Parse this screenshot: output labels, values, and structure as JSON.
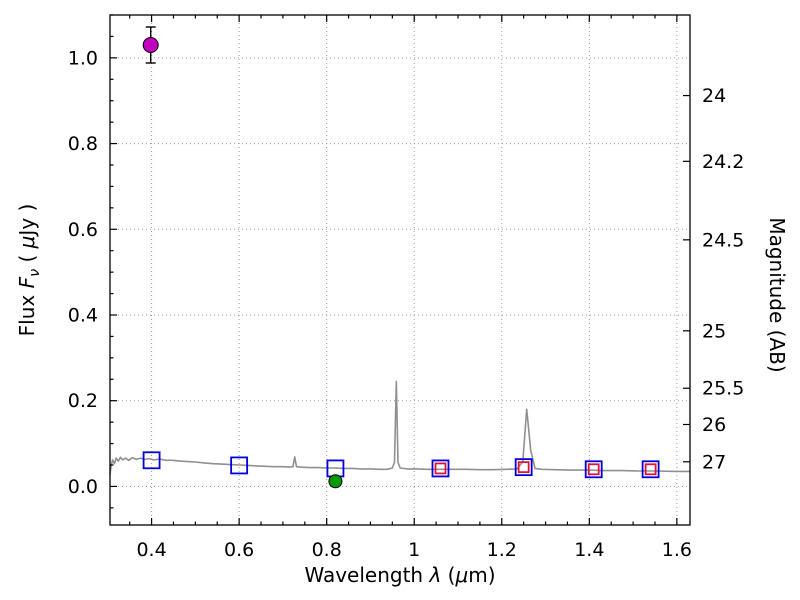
{
  "figure": {
    "background": "#ffffff"
  },
  "chart_data": {
    "type": "line",
    "title": "",
    "xlabel_text": "Wavelength λ (μm)",
    "ylabel_left_text": "Flux Fν ( μJy )",
    "ylabel_right_text": "Magnitude (AB)",
    "xlabel_parts": [
      {
        "text": "Wavelength  ",
        "style": "normal"
      },
      {
        "text": "λ",
        "style": "italic"
      },
      {
        "text": " (",
        "style": "normal"
      },
      {
        "text": "μ",
        "style": "italic"
      },
      {
        "text": "m)",
        "style": "normal"
      }
    ],
    "ylabel_left_parts": [
      {
        "text": "Flux  ",
        "style": "normal"
      },
      {
        "text": "F",
        "style": "italic"
      },
      {
        "text": "ν",
        "style": "italic-sub"
      },
      {
        "text": "  ( ",
        "style": "normal"
      },
      {
        "text": "μ",
        "style": "italic"
      },
      {
        "text": "Jy )",
        "style": "normal"
      }
    ],
    "ylabel_right_parts": [
      {
        "text": "Magnitude (AB)",
        "style": "normal"
      }
    ],
    "xlim": [
      0.305,
      1.63
    ],
    "ylim": [
      -0.09,
      1.1
    ],
    "grid": "dotted",
    "x_ticks": [
      {
        "label": "0.4",
        "value": 0.4
      },
      {
        "label": "0.6",
        "value": 0.6
      },
      {
        "label": "0.8",
        "value": 0.8
      },
      {
        "label": "1",
        "value": 1.0
      },
      {
        "label": "1.2",
        "value": 1.2
      },
      {
        "label": "1.4",
        "value": 1.4
      },
      {
        "label": "1.6",
        "value": 1.6
      }
    ],
    "y_ticks_left": [
      {
        "label": "0.0",
        "value": 0.0
      },
      {
        "label": "0.2",
        "value": 0.2
      },
      {
        "label": "0.4",
        "value": 0.4
      },
      {
        "label": "0.6",
        "value": 0.6
      },
      {
        "label": "0.8",
        "value": 0.8
      },
      {
        "label": "1.0",
        "value": 1.0
      }
    ],
    "y_ticks_right": [
      {
        "label": "24",
        "flux": 0.912
      },
      {
        "label": "24.2",
        "flux": 0.7586
      },
      {
        "label": "24.5",
        "flux": 0.5754
      },
      {
        "label": "25",
        "flux": 0.3631
      },
      {
        "label": "25.5",
        "flux": 0.2291
      },
      {
        "label": "26",
        "flux": 0.1445
      },
      {
        "label": "27",
        "flux": 0.0575
      }
    ],
    "colors": {
      "spectrum": "#909090",
      "blue_square": "#0000dd",
      "red_square": "#dc143c",
      "magenta_point": "#bf00bf",
      "green_point": "#009a00",
      "grid": "#9a9a9a",
      "axis": "#000000",
      "errorbar": "#000000"
    },
    "series": [
      {
        "name": "model-spectrum",
        "type": "line",
        "color_key": "spectrum",
        "points": [
          [
            0.305,
            0.028
          ],
          [
            0.308,
            0.05
          ],
          [
            0.311,
            0.062
          ],
          [
            0.315,
            0.053
          ],
          [
            0.319,
            0.066
          ],
          [
            0.324,
            0.059
          ],
          [
            0.329,
            0.068
          ],
          [
            0.334,
            0.062
          ],
          [
            0.34,
            0.066
          ],
          [
            0.348,
            0.061
          ],
          [
            0.356,
            0.067
          ],
          [
            0.365,
            0.063
          ],
          [
            0.375,
            0.066
          ],
          [
            0.385,
            0.063
          ],
          [
            0.395,
            0.065
          ],
          [
            0.405,
            0.062
          ],
          [
            0.418,
            0.064
          ],
          [
            0.432,
            0.061
          ],
          [
            0.448,
            0.061
          ],
          [
            0.465,
            0.059
          ],
          [
            0.482,
            0.058
          ],
          [
            0.5,
            0.057
          ],
          [
            0.52,
            0.055
          ],
          [
            0.54,
            0.053
          ],
          [
            0.56,
            0.052
          ],
          [
            0.58,
            0.051
          ],
          [
            0.6,
            0.05
          ],
          [
            0.62,
            0.049
          ],
          [
            0.64,
            0.048
          ],
          [
            0.66,
            0.047
          ],
          [
            0.68,
            0.046
          ],
          [
            0.7,
            0.046
          ],
          [
            0.715,
            0.045
          ],
          [
            0.723,
            0.046
          ],
          [
            0.727,
            0.069
          ],
          [
            0.731,
            0.046
          ],
          [
            0.74,
            0.045
          ],
          [
            0.76,
            0.044
          ],
          [
            0.78,
            0.044
          ],
          [
            0.8,
            0.043
          ],
          [
            0.82,
            0.043
          ],
          [
            0.84,
            0.042
          ],
          [
            0.86,
            0.042
          ],
          [
            0.88,
            0.041
          ],
          [
            0.9,
            0.041
          ],
          [
            0.92,
            0.04
          ],
          [
            0.938,
            0.04
          ],
          [
            0.95,
            0.043
          ],
          [
            0.955,
            0.056
          ],
          [
            0.959,
            0.245
          ],
          [
            0.963,
            0.056
          ],
          [
            0.968,
            0.043
          ],
          [
            0.985,
            0.041
          ],
          [
            1.005,
            0.041
          ],
          [
            1.03,
            0.04
          ],
          [
            1.06,
            0.04
          ],
          [
            1.09,
            0.04
          ],
          [
            1.12,
            0.04
          ],
          [
            1.15,
            0.039
          ],
          [
            1.18,
            0.039
          ],
          [
            1.21,
            0.04
          ],
          [
            1.235,
            0.041
          ],
          [
            1.248,
            0.058
          ],
          [
            1.257,
            0.18
          ],
          [
            1.266,
            0.085
          ],
          [
            1.276,
            0.042
          ],
          [
            1.292,
            0.04
          ],
          [
            1.32,
            0.039
          ],
          [
            1.355,
            0.038
          ],
          [
            1.395,
            0.038
          ],
          [
            1.435,
            0.037
          ],
          [
            1.475,
            0.037
          ],
          [
            1.515,
            0.036
          ],
          [
            1.555,
            0.036
          ],
          [
            1.595,
            0.035
          ],
          [
            1.63,
            0.035
          ]
        ]
      },
      {
        "name": "observed-photometry-squares",
        "type": "scatter",
        "marker": "open-square",
        "color_key": "blue_square",
        "size": 16,
        "points": [
          [
            0.4,
            0.061
          ],
          [
            0.6,
            0.049
          ],
          [
            0.82,
            0.042
          ],
          [
            1.06,
            0.042
          ],
          [
            1.25,
            0.045
          ],
          [
            1.41,
            0.04
          ],
          [
            1.54,
            0.04
          ]
        ]
      },
      {
        "name": "template-photometry-squares",
        "type": "scatter",
        "marker": "open-square",
        "color_key": "red_square",
        "size": 10,
        "points": [
          [
            1.06,
            0.042
          ],
          [
            1.25,
            0.045
          ],
          [
            1.41,
            0.04
          ],
          [
            1.54,
            0.04
          ]
        ]
      },
      {
        "name": "magenta-photometry-point",
        "type": "scatter",
        "marker": "circle",
        "color_key": "magenta_point",
        "size": 15,
        "yerr": 0.042,
        "points": [
          [
            0.398,
            1.03
          ]
        ]
      },
      {
        "name": "green-photometry-point",
        "type": "scatter",
        "marker": "circle",
        "color_key": "green_point",
        "size": 13,
        "yerr": 0.01,
        "points": [
          [
            0.82,
            0.012
          ]
        ]
      }
    ]
  }
}
